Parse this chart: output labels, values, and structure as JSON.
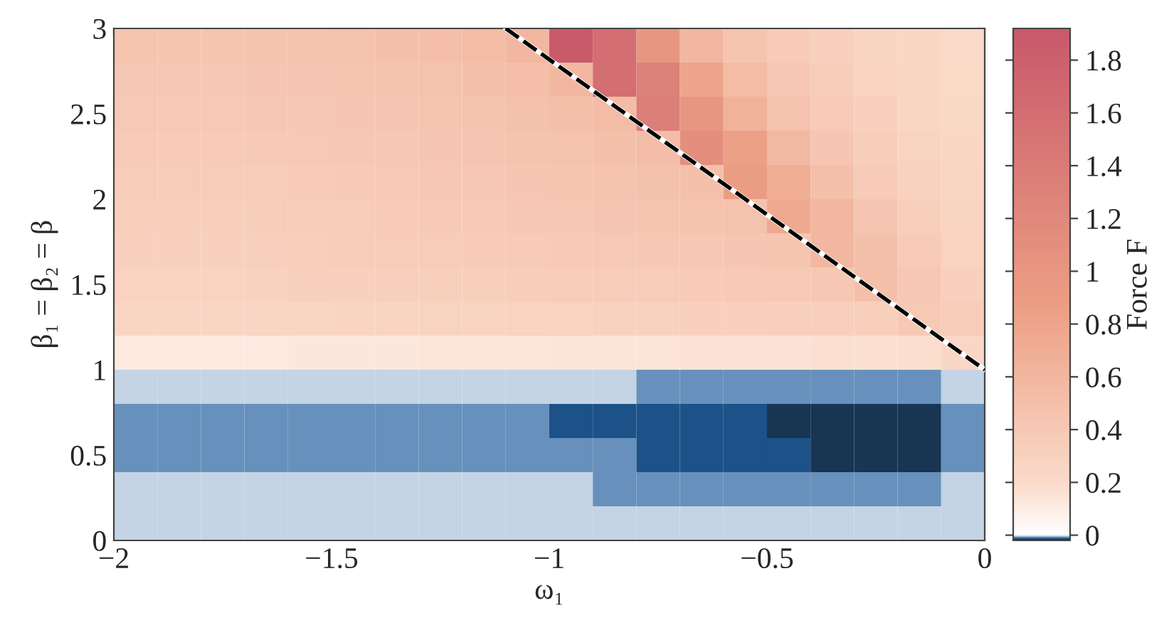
{
  "chart_data": {
    "type": "heatmap",
    "xlabel": "ω₁",
    "ylabel": "β₁ = β₂ = β",
    "clabel": "Force F",
    "x": [
      -1.95,
      -1.85,
      -1.75,
      -1.65,
      -1.55,
      -1.45,
      -1.35,
      -1.25,
      -1.15,
      -1.05,
      -0.95,
      -0.85,
      -0.75,
      -0.65,
      -0.55,
      -0.45,
      -0.35,
      -0.25,
      -0.15,
      -0.05
    ],
    "y": [
      2.9,
      2.7,
      2.5,
      2.3,
      2.1,
      1.9,
      1.7,
      1.5,
      1.3,
      1.1,
      0.9,
      0.7,
      0.5,
      0.3,
      0.1
    ],
    "xlim": [
      -2,
      0
    ],
    "ylim": [
      0,
      3
    ],
    "xticks": [
      {
        "value": -2,
        "label": "−2"
      },
      {
        "value": -1.5,
        "label": "−1.5"
      },
      {
        "value": -1,
        "label": "−1"
      },
      {
        "value": -0.5,
        "label": "−0.5"
      },
      0
    ],
    "yticks": [
      0,
      0.5,
      1,
      1.5,
      2,
      2.5,
      3
    ],
    "clim": [
      -0.02,
      1.92
    ],
    "cticks": [
      0,
      0.2,
      0.4,
      0.6,
      0.8,
      1,
      1.2,
      1.4,
      1.6,
      1.8
    ],
    "cells": [
      [
        0.45,
        0.45,
        0.45,
        0.46,
        0.47,
        0.48,
        0.5,
        0.52,
        0.55,
        0.6,
        1.9,
        1.6,
        1.0,
        0.6,
        0.45,
        0.38,
        0.32,
        0.28,
        0.25,
        0.22
      ],
      [
        0.42,
        0.42,
        0.42,
        0.43,
        0.44,
        0.45,
        0.46,
        0.48,
        0.5,
        0.52,
        0.6,
        1.6,
        1.3,
        0.8,
        0.55,
        0.42,
        0.35,
        0.3,
        0.26,
        0.23
      ],
      [
        0.4,
        0.4,
        0.4,
        0.41,
        0.42,
        0.43,
        0.44,
        0.45,
        0.47,
        0.49,
        0.51,
        0.55,
        1.35,
        1.0,
        0.65,
        0.48,
        0.38,
        0.32,
        0.27,
        0.24
      ],
      [
        0.38,
        0.38,
        0.38,
        0.39,
        0.4,
        0.41,
        0.42,
        0.43,
        0.44,
        0.46,
        0.48,
        0.5,
        0.53,
        1.1,
        0.85,
        0.58,
        0.43,
        0.35,
        0.29,
        0.25
      ],
      [
        0.36,
        0.36,
        0.36,
        0.37,
        0.38,
        0.39,
        0.4,
        0.41,
        0.42,
        0.43,
        0.45,
        0.47,
        0.49,
        0.5,
        0.9,
        0.7,
        0.5,
        0.38,
        0.31,
        0.26
      ],
      [
        0.34,
        0.34,
        0.34,
        0.35,
        0.36,
        0.37,
        0.38,
        0.39,
        0.4,
        0.41,
        0.42,
        0.44,
        0.45,
        0.47,
        0.48,
        0.75,
        0.6,
        0.44,
        0.34,
        0.28
      ],
      [
        0.32,
        0.32,
        0.32,
        0.33,
        0.34,
        0.35,
        0.36,
        0.37,
        0.38,
        0.38,
        0.39,
        0.4,
        0.41,
        0.42,
        0.43,
        0.45,
        0.6,
        0.5,
        0.38,
        0.3
      ],
      [
        0.3,
        0.3,
        0.3,
        0.31,
        0.32,
        0.32,
        0.33,
        0.34,
        0.34,
        0.35,
        0.36,
        0.36,
        0.37,
        0.38,
        0.39,
        0.4,
        0.41,
        0.5,
        0.42,
        0.32
      ],
      [
        0.26,
        0.26,
        0.26,
        0.27,
        0.27,
        0.28,
        0.28,
        0.29,
        0.29,
        0.3,
        0.3,
        0.31,
        0.31,
        0.32,
        0.32,
        0.33,
        0.33,
        0.34,
        0.4,
        0.36
      ],
      [
        0.12,
        0.12,
        0.12,
        0.12,
        0.13,
        0.13,
        0.13,
        0.14,
        0.14,
        0.14,
        0.15,
        0.15,
        0.15,
        0.16,
        0.16,
        0.16,
        0.17,
        0.17,
        0.18,
        0.25
      ],
      [
        -0.003,
        -0.003,
        -0.003,
        -0.003,
        -0.003,
        -0.003,
        -0.003,
        -0.003,
        -0.003,
        -0.003,
        -0.003,
        -0.003,
        -0.008,
        -0.008,
        -0.008,
        -0.008,
        -0.008,
        -0.008,
        -0.008,
        -0.003
      ],
      [
        -0.008,
        -0.008,
        -0.008,
        -0.008,
        -0.008,
        -0.008,
        -0.008,
        -0.008,
        -0.008,
        -0.008,
        -0.013,
        -0.013,
        -0.013,
        -0.013,
        -0.013,
        -0.016,
        -0.016,
        -0.016,
        -0.016,
        -0.008
      ],
      [
        -0.008,
        -0.008,
        -0.008,
        -0.008,
        -0.008,
        -0.008,
        -0.008,
        -0.008,
        -0.008,
        -0.008,
        -0.008,
        -0.008,
        -0.013,
        -0.013,
        -0.013,
        -0.013,
        -0.016,
        -0.016,
        -0.016,
        -0.008
      ],
      [
        -0.003,
        -0.003,
        -0.003,
        -0.003,
        -0.003,
        -0.003,
        -0.003,
        -0.003,
        -0.003,
        -0.003,
        -0.003,
        -0.008,
        -0.008,
        -0.008,
        -0.008,
        -0.008,
        -0.008,
        -0.008,
        -0.008,
        -0.003
      ],
      [
        -0.003,
        -0.003,
        -0.003,
        -0.003,
        -0.003,
        -0.003,
        -0.003,
        -0.003,
        -0.003,
        -0.003,
        -0.003,
        -0.003,
        -0.003,
        -0.003,
        -0.003,
        -0.003,
        -0.003,
        -0.003,
        -0.003,
        -0.003
      ]
    ],
    "series": [
      {
        "type": "line",
        "x": [
          -1.1,
          0
        ],
        "values": [
          3,
          1
        ],
        "color": "#000000",
        "line_style": "dashed"
      }
    ],
    "grid": false,
    "legend": false
  }
}
